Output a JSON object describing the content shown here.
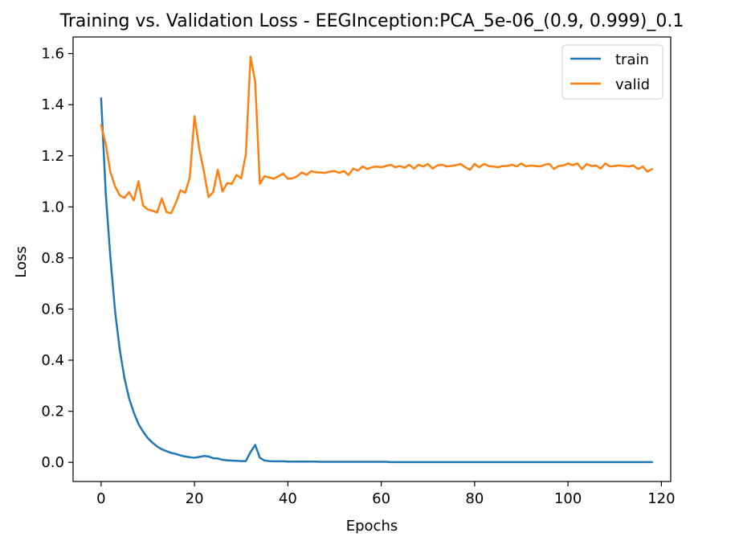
{
  "chart_data": {
    "type": "line",
    "title": "Training vs. Validation Loss - EEGInception:PCA_5e-06_(0.9, 0.999)_0.1",
    "xlabel": "Epochs",
    "ylabel": "Loss",
    "xlim": [
      -6,
      122
    ],
    "ylim": [
      -0.075,
      1.665
    ],
    "xticks": [
      0,
      20,
      40,
      60,
      80,
      100,
      120
    ],
    "yticks": [
      0.0,
      0.2,
      0.4,
      0.6,
      0.8,
      1.0,
      1.2,
      1.4,
      1.6
    ],
    "xtick_labels": [
      "0",
      "20",
      "40",
      "60",
      "80",
      "100",
      "120"
    ],
    "ytick_labels": [
      "0.0",
      "0.2",
      "0.4",
      "0.6",
      "0.8",
      "1.0",
      "1.2",
      "1.4",
      "1.6"
    ],
    "grid": false,
    "legend_position": "top-right",
    "series": [
      {
        "name": "train",
        "color": "#1f77b4",
        "values": [
          1.425,
          1.05,
          0.8,
          0.59,
          0.44,
          0.33,
          0.25,
          0.195,
          0.15,
          0.12,
          0.095,
          0.077,
          0.062,
          0.051,
          0.044,
          0.037,
          0.033,
          0.027,
          0.023,
          0.02,
          0.018,
          0.021,
          0.025,
          0.023,
          0.016,
          0.015,
          0.01,
          0.008,
          0.007,
          0.006,
          0.005,
          0.005,
          0.04,
          0.068,
          0.018,
          0.007,
          0.005,
          0.004,
          0.004,
          0.004,
          0.003,
          0.003,
          0.003,
          0.003,
          0.003,
          0.003,
          0.003,
          0.002,
          0.002,
          0.002,
          0.002,
          0.002,
          0.002,
          0.002,
          0.002,
          0.002,
          0.002,
          0.002,
          0.002,
          0.002,
          0.002,
          0.002,
          0.001,
          0.001,
          0.001,
          0.001,
          0.001,
          0.001,
          0.001,
          0.001,
          0.001,
          0.001,
          0.001,
          0.001,
          0.001,
          0.001,
          0.001,
          0.001,
          0.001,
          0.001,
          0.001,
          0.001,
          0.001,
          0.001,
          0.001,
          0.001,
          0.001,
          0.001,
          0.001,
          0.001,
          0.001,
          0.001,
          0.001,
          0.001,
          0.001,
          0.001,
          0.001,
          0.001,
          0.001,
          0.001,
          0.001,
          0.001,
          0.001,
          0.001,
          0.001,
          0.001,
          0.001,
          0.001,
          0.001,
          0.001,
          0.001,
          0.001,
          0.001,
          0.001,
          0.001,
          0.001,
          0.001,
          0.001,
          0.001
        ]
      },
      {
        "name": "valid",
        "color": "#ff7f0e",
        "values": [
          1.32,
          1.245,
          1.135,
          1.08,
          1.045,
          1.035,
          1.058,
          1.025,
          1.1,
          1.005,
          0.99,
          0.985,
          0.978,
          1.033,
          0.98,
          0.975,
          1.015,
          1.065,
          1.055,
          1.115,
          1.355,
          1.23,
          1.14,
          1.038,
          1.058,
          1.145,
          1.06,
          1.093,
          1.09,
          1.125,
          1.112,
          1.205,
          1.588,
          1.49,
          1.09,
          1.12,
          1.115,
          1.11,
          1.12,
          1.13,
          1.11,
          1.112,
          1.12,
          1.135,
          1.125,
          1.14,
          1.135,
          1.135,
          1.133,
          1.138,
          1.14,
          1.133,
          1.14,
          1.125,
          1.15,
          1.142,
          1.158,
          1.148,
          1.155,
          1.158,
          1.155,
          1.16,
          1.165,
          1.155,
          1.16,
          1.153,
          1.165,
          1.15,
          1.165,
          1.158,
          1.168,
          1.15,
          1.162,
          1.165,
          1.158,
          1.16,
          1.163,
          1.168,
          1.155,
          1.145,
          1.168,
          1.155,
          1.168,
          1.16,
          1.158,
          1.155,
          1.16,
          1.16,
          1.165,
          1.158,
          1.17,
          1.158,
          1.162,
          1.16,
          1.158,
          1.165,
          1.168,
          1.148,
          1.16,
          1.162,
          1.17,
          1.163,
          1.17,
          1.148,
          1.168,
          1.16,
          1.162,
          1.15,
          1.17,
          1.158,
          1.16,
          1.162,
          1.16,
          1.158,
          1.162,
          1.148,
          1.158,
          1.138,
          1.148
        ]
      }
    ]
  }
}
